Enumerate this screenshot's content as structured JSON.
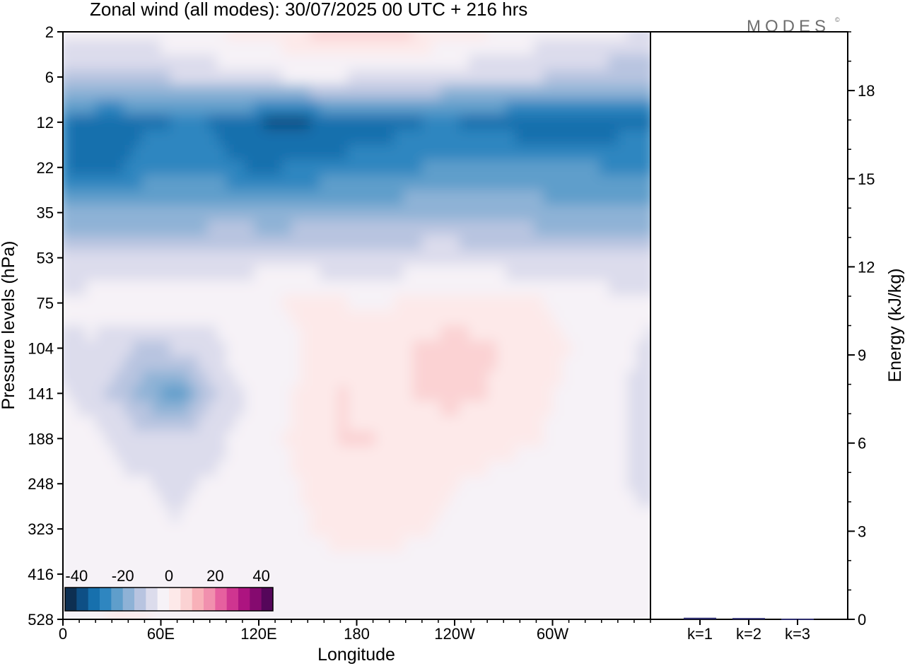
{
  "title": "Zonal wind (all modes):  30/07/2025  00 UTC  + 216 hrs",
  "brand": "MODES",
  "brand_mark": "©",
  "chart_data": [
    {
      "type": "heatmap",
      "xlabel": "Longitude",
      "ylabel": "Pressure levels (hPa)",
      "x_ticks": [
        "0",
        "60E",
        "120E",
        "180",
        "120W",
        "60W"
      ],
      "x_tick_lon": [
        0,
        60,
        120,
        180,
        240,
        300
      ],
      "xlim": [
        0,
        360
      ],
      "y_ticks": [
        "2",
        "6",
        "12",
        "22",
        "35",
        "53",
        "75",
        "104",
        "141",
        "188",
        "248",
        "323",
        "416",
        "528"
      ],
      "colorbar": {
        "tick_labels": [
          "-40",
          "-20",
          "0",
          "20",
          "40"
        ],
        "tick_values": [
          -40,
          -20,
          0,
          20,
          40
        ],
        "range": [
          -45,
          45
        ],
        "colors": [
          "#0d2f52",
          "#0e4f85",
          "#1770ad",
          "#2f86c0",
          "#5f9ecb",
          "#8eb2d6",
          "#b8c4e0",
          "#dcdcec",
          "#f6f2f7",
          "#fde9e9",
          "#fbd2d3",
          "#f8b1b9",
          "#f190ae",
          "#e6609f",
          "#cf3590",
          "#ad1480",
          "#850a6f",
          "#55065a"
        ]
      },
      "field_rows": [
        {
          "level": "2",
          "values": [
            -2,
            -3,
            -4,
            -3,
            -2,
            -1,
            0,
            1,
            3,
            5,
            7,
            8,
            6,
            4,
            2,
            0,
            -1,
            -3,
            -4,
            -5,
            -5,
            -6
          ]
        },
        {
          "level": "6",
          "values": [
            -14,
            -13,
            -12,
            -11,
            -10,
            -8,
            -7,
            -6,
            -5,
            -5,
            -5,
            -6,
            -6,
            -7,
            -8,
            -8,
            -9,
            -10,
            -11,
            -12,
            -13,
            -14
          ]
        },
        {
          "level": "12",
          "values": [
            -30,
            -31,
            -32,
            -31,
            -30,
            -30,
            -33,
            -35,
            -36,
            -35,
            -34,
            -33,
            -31,
            -30,
            -30,
            -31,
            -33,
            -34,
            -34,
            -33,
            -32,
            -31
          ]
        },
        {
          "level": "22",
          "values": [
            -30,
            -31,
            -31,
            -28,
            -26,
            -27,
            -29,
            -31,
            -30,
            -29,
            -28,
            -28,
            -27,
            -25,
            -24,
            -24,
            -24,
            -24,
            -25,
            -25,
            -26,
            -28
          ]
        },
        {
          "level": "35",
          "values": [
            -20,
            -20,
            -19,
            -19,
            -18,
            -18,
            -18,
            -19,
            -19,
            -18,
            -17,
            -17,
            -17,
            -16,
            -16,
            -17,
            -17,
            -18,
            -18,
            -19,
            -19,
            -19
          ]
        },
        {
          "level": "53",
          "values": [
            -10,
            -9,
            -8,
            -8,
            -9,
            -9,
            -8,
            -7,
            -7,
            -8,
            -8,
            -8,
            -8,
            -7,
            -7,
            -7,
            -8,
            -9,
            -10,
            -10,
            -10,
            -10
          ]
        },
        {
          "level": "75",
          "values": [
            -4,
            -3,
            -2,
            -1,
            -1,
            -2,
            -2,
            -1,
            0,
            1,
            0,
            -1,
            0,
            1,
            1,
            1,
            0,
            0,
            -1,
            -2,
            -3,
            -4
          ]
        },
        {
          "level": "104",
          "values": [
            -6,
            -6,
            -9,
            -12,
            -10,
            -8,
            -4,
            -2,
            -1,
            1,
            2,
            3,
            4,
            6,
            8,
            6,
            4,
            2,
            0,
            -2,
            -4,
            -6
          ]
        },
        {
          "level": "141",
          "values": [
            -5,
            -7,
            -12,
            -18,
            -24,
            -14,
            -7,
            -3,
            -1,
            2,
            5,
            4,
            3,
            6,
            7,
            5,
            3,
            1,
            -1,
            -3,
            -5,
            -7
          ]
        },
        {
          "level": "188",
          "values": [
            -3,
            -4,
            -6,
            -9,
            -10,
            -7,
            -5,
            -2,
            0,
            2,
            5,
            5,
            2,
            1,
            2,
            2,
            1,
            0,
            -1,
            -3,
            -5,
            -7
          ]
        },
        {
          "level": "248",
          "values": [
            -3,
            -3,
            -4,
            -5,
            -6,
            -5,
            -4,
            -2,
            -1,
            1,
            4,
            4,
            2,
            1,
            0,
            -1,
            -2,
            -3,
            -3,
            -4,
            -5,
            -6
          ]
        },
        {
          "level": "323",
          "values": [
            -2,
            -2,
            -3,
            -4,
            -5,
            -4,
            -3,
            -2,
            -1,
            0,
            2,
            3,
            1,
            0,
            -1,
            -2,
            -3,
            -4,
            -5,
            -4,
            -4,
            -4
          ]
        },
        {
          "level": "416",
          "values": [
            -2,
            -2,
            -2,
            -3,
            -3,
            -3,
            -3,
            -3,
            -2,
            -2,
            -3,
            -3,
            -2,
            -2,
            -3,
            -4,
            -3,
            -2,
            -3,
            -3,
            -3,
            -3
          ]
        },
        {
          "level": "528",
          "values": [
            -2,
            -1,
            1,
            0,
            -2,
            -2,
            -3,
            -3,
            -3,
            -2,
            -3,
            -3,
            -2,
            -2,
            -3,
            -3,
            -3,
            -3,
            -3,
            -3,
            -3,
            -3
          ]
        }
      ]
    },
    {
      "type": "bar",
      "ylabel": "Energy (kJ/kg)",
      "categories": [
        "k=1",
        "k=2",
        "k=3"
      ],
      "values": [
        0.03,
        0.02,
        0.0
      ],
      "ylim": [
        0,
        20
      ],
      "y_ticks": [
        "0",
        "3",
        "6",
        "9",
        "12",
        "15",
        "18"
      ],
      "y_tick_values": [
        0,
        3,
        6,
        9,
        12,
        15,
        18
      ]
    }
  ]
}
